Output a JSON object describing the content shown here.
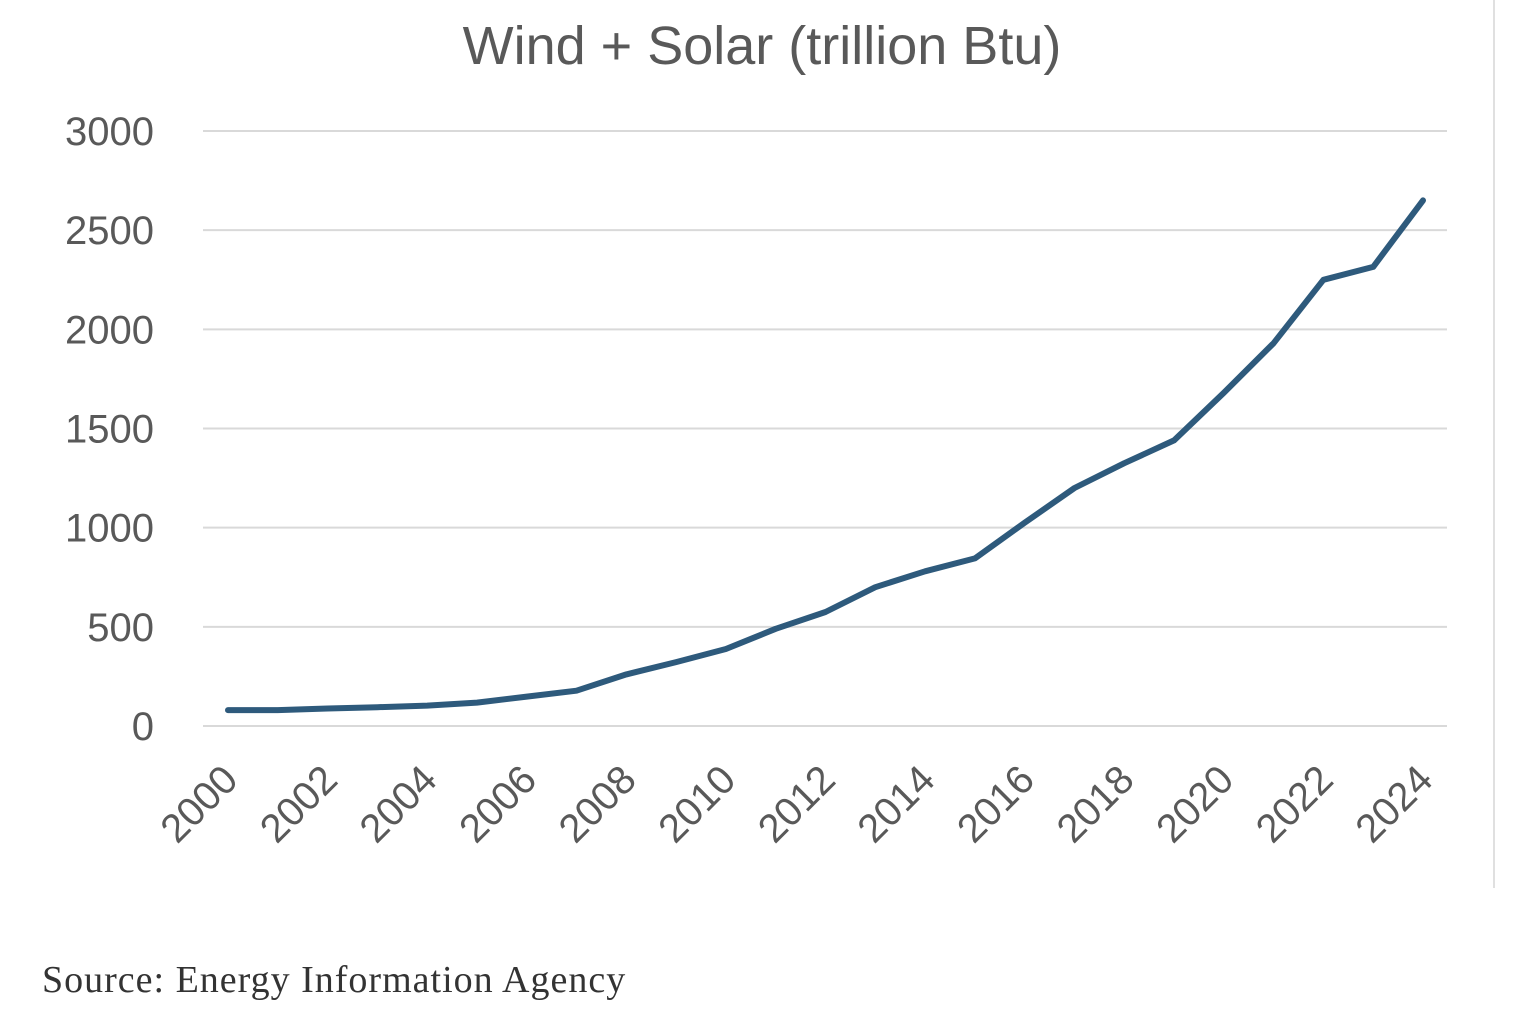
{
  "chart_data": {
    "type": "line",
    "title": "Wind + Solar (trillion Btu)",
    "xlabel": "",
    "ylabel": "",
    "ylim": [
      0,
      3000
    ],
    "yticks": [
      "0",
      "500",
      "1000",
      "1500",
      "2000",
      "2500",
      "3000"
    ],
    "xticks": [
      "2000",
      "2002",
      "2004",
      "2006",
      "2008",
      "2010",
      "2012",
      "2014",
      "2016",
      "2018",
      "2020",
      "2022",
      "2024"
    ],
    "grid": true,
    "legend": "none",
    "x": [
      2000,
      2001,
      2002,
      2003,
      2004,
      2005,
      2006,
      2007,
      2008,
      2009,
      2010,
      2011,
      2012,
      2013,
      2014,
      2015,
      2016,
      2017,
      2018,
      2019,
      2020,
      2021,
      2022,
      2023,
      2024
    ],
    "series": [
      {
        "color": "#2e5a7c",
        "values": [
          80,
          80,
          88,
          95,
          103,
          118,
          148,
          178,
          260,
          322,
          388,
          490,
          575,
          700,
          780,
          845,
          1025,
          1200,
          1325,
          1440,
          1680,
          1930,
          2250,
          2315,
          2650
        ]
      }
    ]
  },
  "source": "Source: Energy Information Agency"
}
